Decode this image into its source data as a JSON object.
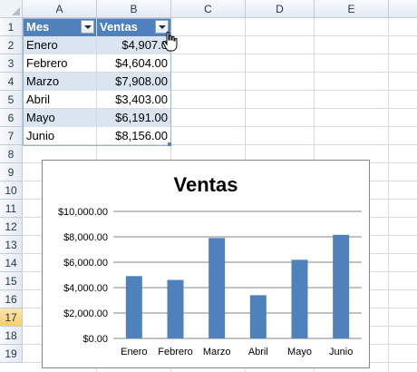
{
  "columns": [
    "A",
    "B",
    "C",
    "D",
    "E"
  ],
  "rows": [
    "1",
    "2",
    "3",
    "4",
    "5",
    "6",
    "7",
    "8",
    "9",
    "10",
    "11",
    "12",
    "13",
    "14",
    "15",
    "16",
    "17",
    "18",
    "19"
  ],
  "active_row": "17",
  "table": {
    "headers": [
      "Mes",
      "Ventas"
    ],
    "records": [
      {
        "mes": "Enero",
        "ventas": "$4,907.0"
      },
      {
        "mes": "Febrero",
        "ventas": "$4,604.00"
      },
      {
        "mes": "Marzo",
        "ventas": "$7,908.00"
      },
      {
        "mes": "Abril",
        "ventas": "$3,403.00"
      },
      {
        "mes": "Mayo",
        "ventas": "$6,191.00"
      },
      {
        "mes": "Junio",
        "ventas": "$8,156.00"
      }
    ],
    "icons": {
      "filter": "dropdown-filter-icon"
    }
  },
  "colors": {
    "header_fill": "#4f81bd",
    "band_fill": "#dbe4f1",
    "bar_fill": "#4f81bd"
  },
  "chart_data": {
    "type": "bar",
    "title": "Ventas",
    "categories": [
      "Enero",
      "Febrero",
      "Marzo",
      "Abril",
      "Mayo",
      "Junio"
    ],
    "values": [
      4907,
      4604,
      7908,
      3403,
      6191,
      8156
    ],
    "ylim": [
      0,
      10000
    ],
    "yticks": [
      {
        "v": 0,
        "label": "$0.00"
      },
      {
        "v": 2000,
        "label": "$2,000.00"
      },
      {
        "v": 4000,
        "label": "$4,000.00"
      },
      {
        "v": 6000,
        "label": "$6,000.00"
      },
      {
        "v": 8000,
        "label": "$8,000.00"
      },
      {
        "v": 10000,
        "label": "$10,000.00"
      }
    ],
    "grid": true,
    "legend": "none"
  }
}
